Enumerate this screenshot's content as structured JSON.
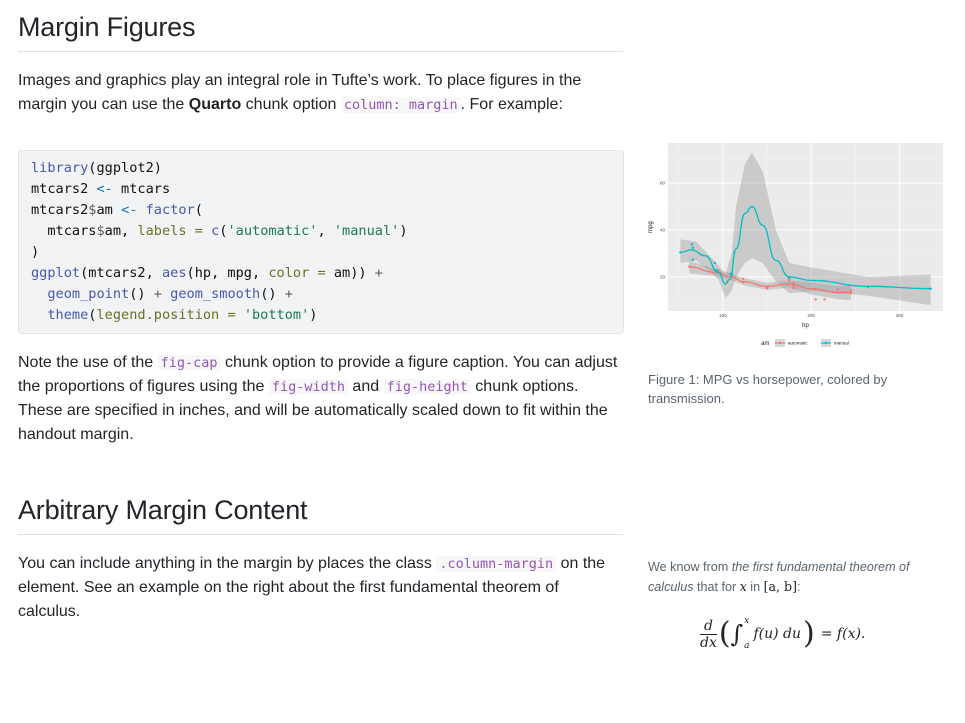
{
  "section1": {
    "heading": "Margin Figures",
    "para1": {
      "t1": "Images and graphics play an integral role in Tufte’s work. To place figures in the margin you can use the ",
      "bold": "Quarto",
      "t2": " chunk option ",
      "code": "column: margin",
      "t3": ". For example:"
    },
    "code_lines": [
      [
        [
          "library",
          "fn"
        ],
        [
          "(ggplot2)",
          "pl"
        ]
      ],
      [
        [
          "mtcars2 ",
          "pl"
        ],
        [
          "<-",
          "as"
        ],
        [
          " mtcars",
          "pl"
        ]
      ],
      [
        [
          "mtcars2",
          "pl"
        ],
        [
          "$",
          "op"
        ],
        [
          "am ",
          "pl"
        ],
        [
          "<-",
          "as"
        ],
        [
          " ",
          "pl"
        ],
        [
          "factor",
          "fn"
        ],
        [
          "(",
          "pl"
        ]
      ],
      [
        [
          "  mtcars",
          "pl"
        ],
        [
          "$",
          "op"
        ],
        [
          "am, ",
          "pl"
        ],
        [
          "labels ",
          "arg"
        ],
        [
          "=",
          "arg"
        ],
        [
          " ",
          "pl"
        ],
        [
          "c",
          "fn"
        ],
        [
          "(",
          "pl"
        ],
        [
          "'automatic'",
          "str"
        ],
        [
          ", ",
          "pl"
        ],
        [
          "'manual'",
          "str"
        ],
        [
          ")",
          "pl"
        ]
      ],
      [
        [
          ")",
          "pl"
        ]
      ],
      [
        [
          "ggplot",
          "fn"
        ],
        [
          "(mtcars2, ",
          "pl"
        ],
        [
          "aes",
          "fn"
        ],
        [
          "(hp, mpg, ",
          "pl"
        ],
        [
          "color ",
          "arg"
        ],
        [
          "=",
          "arg"
        ],
        [
          " am)) ",
          "pl"
        ],
        [
          "+",
          "op"
        ]
      ],
      [
        [
          "  ",
          "pl"
        ],
        [
          "geom_point",
          "fn"
        ],
        [
          "() ",
          "pl"
        ],
        [
          "+",
          "op"
        ],
        [
          " ",
          "pl"
        ],
        [
          "geom_smooth",
          "fn"
        ],
        [
          "() ",
          "pl"
        ],
        [
          "+",
          "op"
        ]
      ],
      [
        [
          "  ",
          "pl"
        ],
        [
          "theme",
          "fn"
        ],
        [
          "(",
          "pl"
        ],
        [
          "legend.position ",
          "arg"
        ],
        [
          "=",
          "arg"
        ],
        [
          " ",
          "pl"
        ],
        [
          "'bottom'",
          "str"
        ],
        [
          ")",
          "pl"
        ]
      ]
    ],
    "para2": {
      "t1": "Note the use of the ",
      "c1": "fig-cap",
      "t2": " chunk option to provide a figure caption. You can adjust the proportions of figures using the ",
      "c2": "fig-width",
      "t3": " and ",
      "c3": "fig-height",
      "t4": " chunk options. These are specified in inches, and will be automatically scaled down to fit within the handout margin."
    },
    "caption": "Figure 1: MPG vs horsepower, colored by transmission."
  },
  "section2": {
    "heading": "Arbitrary Margin Content",
    "para": {
      "t1": "You can include anything in the margin by places the class ",
      "code": ".column-margin",
      "t2": " on the element. See an example on the right about the first fundamental theorem of calculus."
    },
    "margin": {
      "t1": "We know from ",
      "em": "the first fundamental theorem of calculus",
      "t2": " that for ",
      "var": "x",
      "t3": " in ",
      "interval": "[a, b]",
      "t4": ":"
    },
    "equation": {
      "d": "d",
      "dx": "dx",
      "upper": "x",
      "lower": "a",
      "integrand": "f(u) du",
      "rhs": "= f(x)."
    }
  },
  "chart_data": {
    "type": "scatter",
    "xlabel": "hp",
    "ylabel": "mpg",
    "xlim": [
      38,
      349
    ],
    "ylim": [
      5.5,
      77
    ],
    "xticks": [
      100,
      200,
      300
    ],
    "yticks": [
      20,
      40,
      60
    ],
    "grid": true,
    "legend": {
      "title": "am",
      "position": "bottom"
    },
    "series": [
      {
        "name": "automatic",
        "color": "#f8766d",
        "points": [
          [
            110,
            21.4
          ],
          [
            175,
            18.7
          ],
          [
            105,
            18.1
          ],
          [
            245,
            14.3
          ],
          [
            62,
            24.4
          ],
          [
            95,
            22.8
          ],
          [
            123,
            19.2
          ],
          [
            123,
            17.8
          ],
          [
            180,
            16.4
          ],
          [
            180,
            17.3
          ],
          [
            180,
            15.2
          ],
          [
            205,
            10.4
          ],
          [
            215,
            10.4
          ],
          [
            230,
            14.7
          ],
          [
            97,
            21.5
          ],
          [
            150,
            15.5
          ],
          [
            150,
            15.2
          ],
          [
            245,
            13.3
          ],
          [
            175,
            19.2
          ]
        ],
        "smooth": [
          [
            62,
            24.3
          ],
          [
            90,
            22
          ],
          [
            110,
            20
          ],
          [
            123,
            18
          ],
          [
            150,
            16
          ],
          [
            175,
            17
          ],
          [
            200,
            15
          ],
          [
            230,
            13.3
          ],
          [
            245,
            13.5
          ]
        ],
        "band": [
          [
            62,
            21.5,
            27
          ],
          [
            90,
            20.5,
            23.5
          ],
          [
            110,
            18.5,
            21.5
          ],
          [
            123,
            16.5,
            19.5
          ],
          [
            150,
            14.5,
            17.5
          ],
          [
            175,
            15.5,
            18.5
          ],
          [
            200,
            12.5,
            17.5
          ],
          [
            230,
            10.5,
            16
          ],
          [
            245,
            10,
            17
          ]
        ]
      },
      {
        "name": "manual",
        "color": "#00bfc4",
        "points": [
          [
            110,
            21
          ],
          [
            110,
            21
          ],
          [
            93,
            22.8
          ],
          [
            66,
            32.4
          ],
          [
            52,
            30.4
          ],
          [
            65,
            33.9
          ],
          [
            66,
            27.3
          ],
          [
            91,
            26
          ],
          [
            113,
            30.4
          ],
          [
            264,
            15.8
          ],
          [
            175,
            19.7
          ],
          [
            335,
            15
          ],
          [
            109,
            21.4
          ]
        ],
        "smooth": [
          [
            52,
            30.5
          ],
          [
            65,
            31.5
          ],
          [
            80,
            29
          ],
          [
            95,
            22
          ],
          [
            103,
            17
          ],
          [
            108,
            19
          ],
          [
            115,
            32
          ],
          [
            125,
            47
          ],
          [
            133,
            50
          ],
          [
            145,
            42
          ],
          [
            160,
            27
          ],
          [
            175,
            20
          ],
          [
            200,
            18.5
          ],
          [
            264,
            16
          ],
          [
            335,
            15
          ]
        ],
        "band": [
          [
            52,
            26,
            36
          ],
          [
            70,
            27,
            35
          ],
          [
            95,
            19,
            25
          ],
          [
            103,
            11,
            21
          ],
          [
            110,
            14,
            30
          ],
          [
            115,
            20,
            50
          ],
          [
            125,
            26,
            68
          ],
          [
            133,
            28,
            73
          ],
          [
            145,
            26,
            65
          ],
          [
            160,
            18,
            40
          ],
          [
            175,
            13,
            26
          ],
          [
            200,
            14,
            24
          ],
          [
            264,
            12,
            20
          ],
          [
            335,
            8,
            21
          ]
        ]
      }
    ]
  }
}
